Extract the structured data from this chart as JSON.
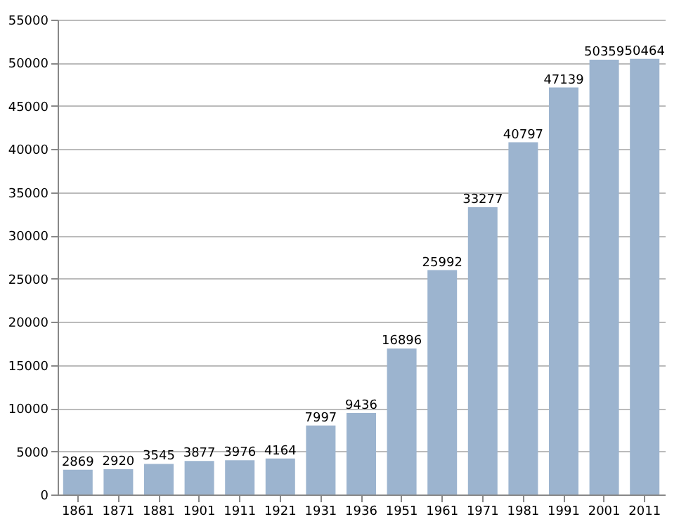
{
  "chart_data": {
    "type": "bar",
    "categories": [
      "1861",
      "1871",
      "1881",
      "1901",
      "1911",
      "1921",
      "1931",
      "1936",
      "1951",
      "1961",
      "1971",
      "1981",
      "1991",
      "2001",
      "2011"
    ],
    "values": [
      2869,
      2920,
      3545,
      3877,
      3976,
      4164,
      7997,
      9436,
      16896,
      25992,
      33277,
      40797,
      47139,
      50359,
      50464
    ],
    "color": "#9cb4cf",
    "ylim": [
      0,
      55000
    ],
    "yticks": [
      0,
      5000,
      10000,
      15000,
      20000,
      25000,
      30000,
      35000,
      40000,
      45000,
      50000,
      55000
    ],
    "grid": "y",
    "data_labels": true
  }
}
